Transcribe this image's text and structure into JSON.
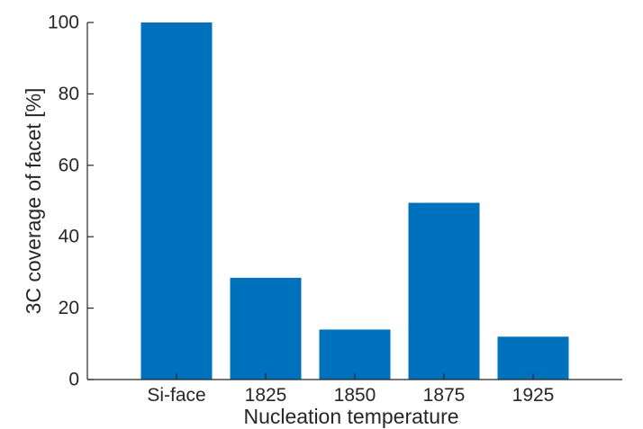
{
  "chart_data": {
    "type": "bar",
    "categories": [
      "Si-face",
      "1825",
      "1850",
      "1875",
      "1925"
    ],
    "values": [
      100,
      28.5,
      14,
      49.5,
      12
    ],
    "xlabel": "Nucleation temperature",
    "ylabel": "3C coverage of facet [%]",
    "ylim": [
      0,
      100
    ],
    "yticks": [
      0,
      20,
      40,
      60,
      80,
      100
    ],
    "grid": false,
    "bar_color": "#0072BD"
  }
}
